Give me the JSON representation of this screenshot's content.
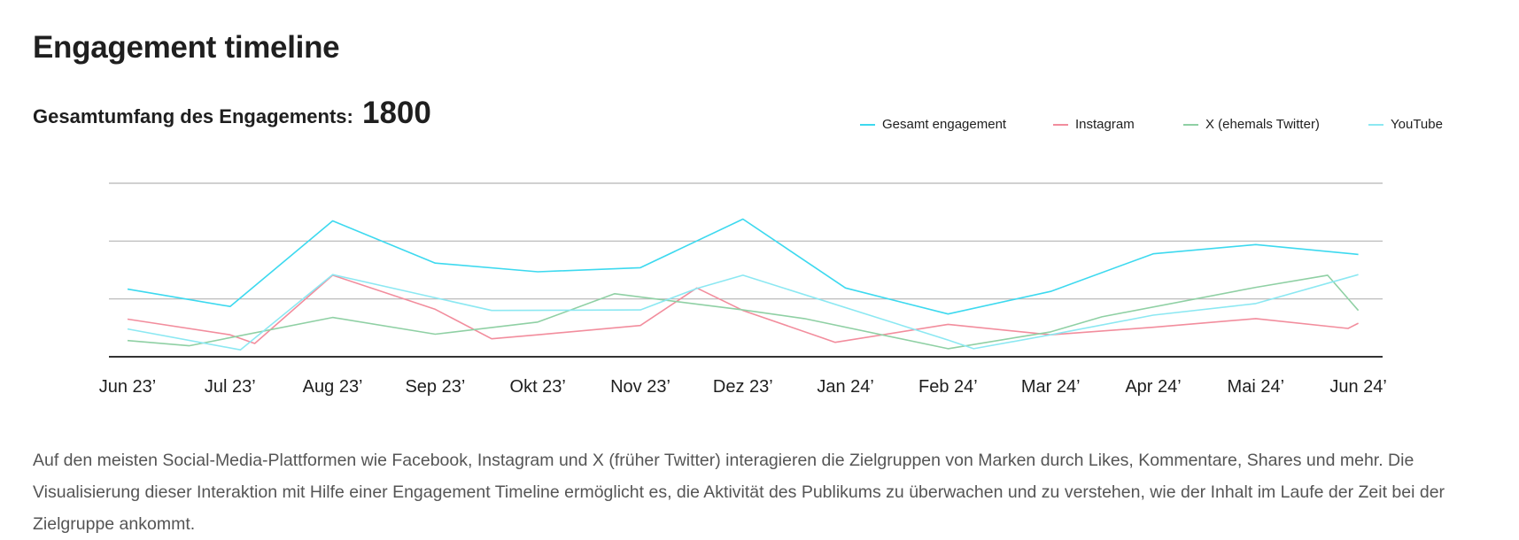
{
  "title": "Engagement timeline",
  "total": {
    "label": "Gesamtumfang des Engagements:",
    "value": "1800"
  },
  "description": "Auf den meisten Social-Media-Plattformen wie Facebook, Instagram und X (früher Twitter) interagieren die Zielgruppen von Marken durch Likes, Kommentare, Shares und mehr. Die Visualisierung dieser Interaktion mit Hilfe einer Engagement Timeline ermöglicht es, die Aktivität des Publikums zu überwachen und zu verstehen, wie der Inhalt im Laufe der Zeit bei der Zielgruppe ankommt.",
  "colors": {
    "gesamt": "#3dd9ef",
    "instagram": "#f28d9d",
    "x": "#8fd0a4",
    "youtube": "#8ce8f2",
    "gridline": "#b5b5b5",
    "baseline": "#333333"
  },
  "chart_data": {
    "type": "line",
    "categories": [
      "Jun 23’",
      "Jul 23’",
      "Aug 23’",
      "Sep 23’",
      "Okt 23’",
      "Nov 23’",
      "Dez 23’",
      "Jan 24’",
      "Feb 24’",
      "Mar 24’",
      "Apr 24’",
      "Mai 24’",
      "Jun 24’"
    ],
    "ylim": [
      0,
      3
    ],
    "grid": true,
    "y_tick_labels": false,
    "legend_position": "top-right",
    "series": [
      {
        "name": "Gesamt engagement",
        "color": "#3dd9ef",
        "points": [
          [
            0,
            1.17
          ],
          [
            1,
            0.87
          ],
          [
            2,
            2.35
          ],
          [
            3,
            1.62
          ],
          [
            4,
            1.47
          ],
          [
            5,
            1.54
          ],
          [
            6,
            2.38
          ],
          [
            7,
            1.19
          ],
          [
            8,
            0.74
          ],
          [
            9,
            1.13
          ],
          [
            10,
            1.78
          ],
          [
            11,
            1.94
          ],
          [
            12,
            1.77
          ]
        ]
      },
      {
        "name": "Instagram",
        "color": "#f28d9d",
        "points": [
          [
            0,
            0.65
          ],
          [
            1,
            0.38
          ],
          [
            1.24,
            0.23
          ],
          [
            2,
            1.41
          ],
          [
            3,
            0.82
          ],
          [
            3.55,
            0.31
          ],
          [
            4,
            0.38
          ],
          [
            5,
            0.54
          ],
          [
            5.55,
            1.19
          ],
          [
            6,
            0.8
          ],
          [
            6.9,
            0.25
          ],
          [
            8,
            0.56
          ],
          [
            9,
            0.38
          ],
          [
            10,
            0.51
          ],
          [
            11,
            0.66
          ],
          [
            11.9,
            0.49
          ],
          [
            12,
            0.58
          ]
        ]
      },
      {
        "name": "X (ehemals Twitter)",
        "color": "#8fd0a4",
        "points": [
          [
            0,
            0.28
          ],
          [
            0.6,
            0.19
          ],
          [
            2,
            0.68
          ],
          [
            3,
            0.39
          ],
          [
            4,
            0.6
          ],
          [
            4.75,
            1.09
          ],
          [
            6,
            0.81
          ],
          [
            6.6,
            0.66
          ],
          [
            8,
            0.14
          ],
          [
            9,
            0.43
          ],
          [
            9.5,
            0.69
          ],
          [
            11,
            1.2
          ],
          [
            11.7,
            1.41
          ],
          [
            12,
            0.8
          ]
        ]
      },
      {
        "name": "YouTube",
        "color": "#8ce8f2",
        "points": [
          [
            0,
            0.48
          ],
          [
            1.1,
            0.12
          ],
          [
            2,
            1.42
          ],
          [
            3,
            1.02
          ],
          [
            3.55,
            0.8
          ],
          [
            5,
            0.81
          ],
          [
            5.55,
            1.18
          ],
          [
            6,
            1.41
          ],
          [
            8,
            0.29
          ],
          [
            8.25,
            0.14
          ],
          [
            9,
            0.38
          ],
          [
            10,
            0.72
          ],
          [
            11,
            0.92
          ],
          [
            12,
            1.42
          ]
        ]
      }
    ]
  }
}
